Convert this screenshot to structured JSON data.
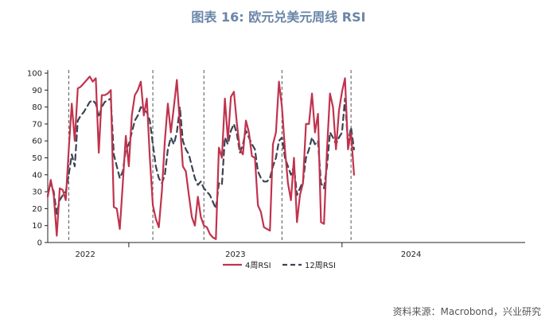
{
  "chart_data": {
    "type": "line",
    "title": "图表 16: 欧元兑美元周线 RSI",
    "ylim": [
      0,
      100
    ],
    "yticks": [
      0,
      10,
      20,
      30,
      40,
      50,
      60,
      70,
      80,
      90,
      100
    ],
    "xlim": [
      0,
      159
    ],
    "x_group_labels": [
      "2022",
      "2023",
      "2024"
    ],
    "x_group_dividers": [
      27,
      98
    ],
    "x_label_positions": [
      12.5,
      62.5,
      121
    ],
    "vertical_dashed_markers": [
      7,
      35,
      52,
      78,
      101
    ],
    "grid": false,
    "legend_position": "bottom",
    "series": [
      {
        "name": "4周RSI",
        "color": "#c0334d",
        "style": "solid",
        "values": [
          27,
          37,
          28,
          4,
          32,
          31,
          25,
          55,
          82,
          60,
          91,
          92,
          94,
          96,
          98,
          95,
          97,
          53,
          87,
          87,
          88,
          90,
          21,
          20,
          8,
          35,
          63,
          45,
          75,
          87,
          90,
          95,
          75,
          85,
          50,
          22,
          14,
          9,
          30,
          60,
          82,
          65,
          80,
          96,
          70,
          45,
          42,
          28,
          15,
          10,
          27,
          15,
          10,
          9,
          5,
          3,
          2,
          56,
          50,
          85,
          60,
          86,
          89,
          70,
          55,
          52,
          72,
          65,
          51,
          50,
          22,
          18,
          9,
          8,
          7,
          58,
          65,
          95,
          80,
          55,
          35,
          25,
          50,
          12,
          28,
          35,
          70,
          70,
          88,
          65,
          76,
          12,
          11,
          55,
          88,
          80,
          55,
          78,
          89,
          97,
          55,
          65,
          40
        ]
      },
      {
        "name": "12周RSI",
        "color": "#3a4453",
        "style": "dashed",
        "values": [
          28,
          35,
          30,
          17,
          25,
          28,
          30,
          40,
          52,
          45,
          72,
          75,
          77,
          80,
          83,
          84,
          82,
          74,
          80,
          83,
          84,
          85,
          52,
          45,
          38,
          42,
          55,
          58,
          65,
          72,
          75,
          80,
          78,
          77,
          72,
          58,
          45,
          38,
          35,
          40,
          55,
          62,
          58,
          65,
          80,
          60,
          55,
          52,
          45,
          38,
          34,
          36,
          32,
          30,
          28,
          24,
          20,
          35,
          34,
          62,
          58,
          66,
          70,
          64,
          53,
          58,
          66,
          62,
          58,
          55,
          42,
          38,
          36,
          36,
          38,
          45,
          50,
          60,
          62,
          50,
          45,
          40,
          45,
          28,
          32,
          36,
          50,
          55,
          62,
          58,
          60,
          35,
          32,
          45,
          65,
          62,
          58,
          62,
          65,
          85,
          58,
          68,
          55
        ]
      }
    ]
  },
  "legend": [
    {
      "label": "4周RSI"
    },
    {
      "label": "12周RSI"
    }
  ],
  "source": "资料来源：Macrobond，兴业研究"
}
